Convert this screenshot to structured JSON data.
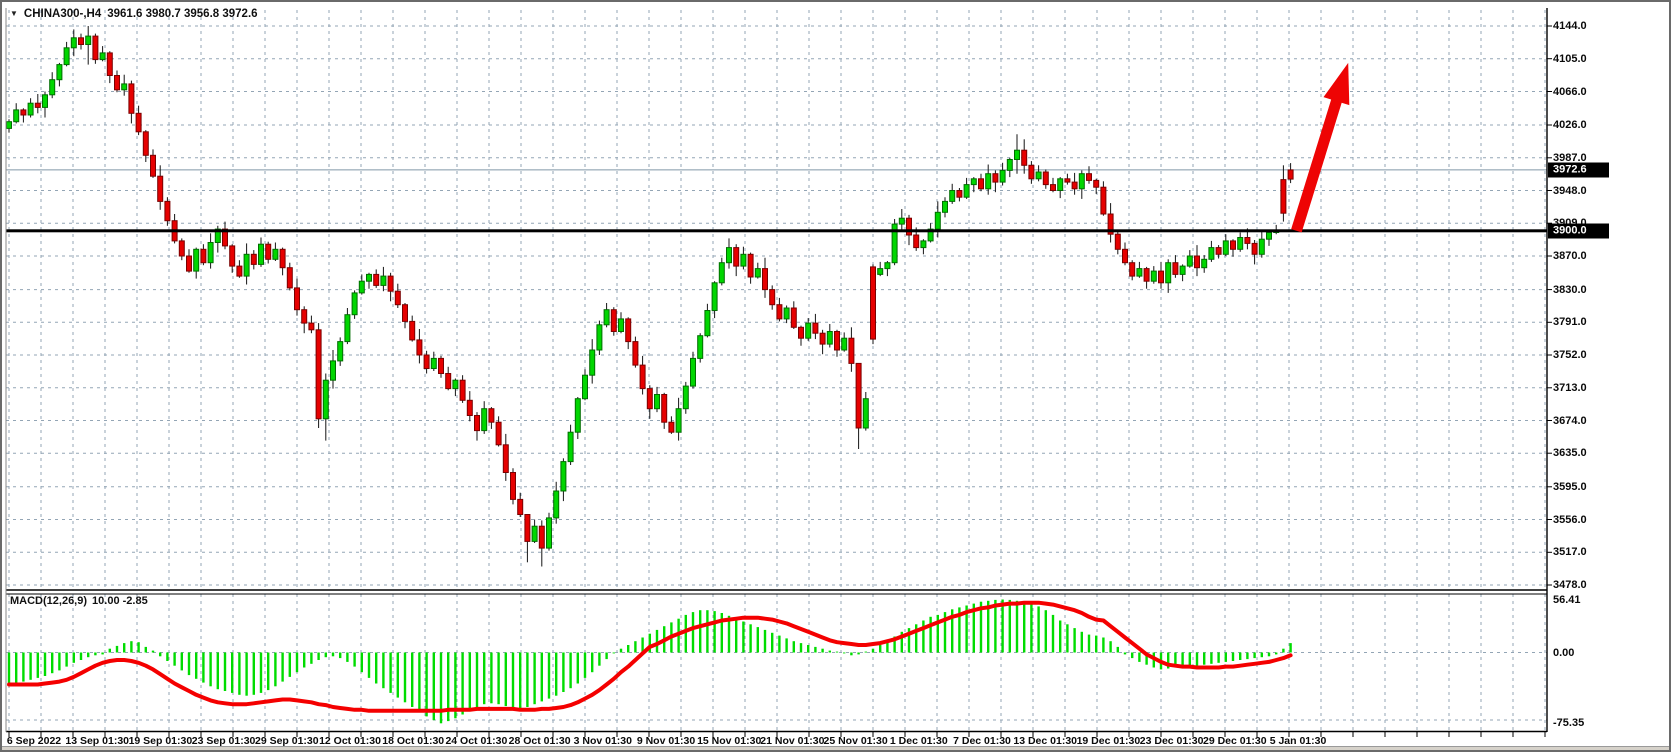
{
  "header": {
    "symbol_period": "CHINA300-,H4",
    "ohlc_text": "3961.6 3980.7 3956.8 3972.6",
    "dropdown_glyph": "▼"
  },
  "macd_header": {
    "name": "MACD(12,26,9)",
    "values": "10.00 -2.85"
  },
  "chart_data": {
    "type": "candlestick+macd",
    "symbol": "CHINA300-",
    "timeframe": "H4",
    "title": "CHINA300-,H4  3961.6 3980.7 3956.8 3972.6",
    "current_quote": {
      "open": 3961.6,
      "high": 3980.7,
      "low": 3956.8,
      "close": 3972.6
    },
    "current_price_label": "3972.6",
    "hline_label": "3900.0",
    "hline_price": 3900.0,
    "price_axis_labels": [
      "4144.0",
      "4105.0",
      "4066.0",
      "4026.0",
      "3987.0",
      "3948.0",
      "3909.0",
      "3870.0",
      "3830.0",
      "3791.0",
      "3752.0",
      "3713.0",
      "3674.0",
      "3635.0",
      "3595.0",
      "3556.0",
      "3517.0",
      "3478.0"
    ],
    "price_axis_range": [
      3478.0,
      4144.0
    ],
    "grid": "dashed",
    "time_axis_labels": [
      "6 Sep 2022",
      "13 Sep 01:30",
      "19 Sep 01:30",
      "23 Sep 01:30",
      "29 Sep 01:30",
      "12 Oct 01:30",
      "18 Oct 01:30",
      "24 Oct 01:30",
      "28 Oct 01:30",
      "3 Nov 01:30",
      "9 Nov 01:30",
      "15 Nov 01:30",
      "21 Nov 01:30",
      "25 Nov 01:30",
      "1 Dec 01:30",
      "7 Dec 01:30",
      "13 Dec 01:30",
      "19 Dec 01:30",
      "23 Dec 01:30",
      "29 Dec 01:30",
      "5 Jan 01:30"
    ],
    "candles": {
      "closes": [
        4030,
        4044,
        4038,
        4052,
        4047,
        4062,
        4080,
        4098,
        4118,
        4130,
        4122,
        4132,
        4104,
        4112,
        4085,
        4068,
        4075,
        4040,
        4018,
        3990,
        3965,
        3935,
        3912,
        3888,
        3870,
        3852,
        3878,
        3862,
        3886,
        3902,
        3882,
        3858,
        3846,
        3872,
        3860,
        3884,
        3866,
        3878,
        3856,
        3832,
        3806,
        3790,
        3782,
        3676,
        3722,
        3745,
        3768,
        3800,
        3826,
        3840,
        3848,
        3835,
        3846,
        3828,
        3812,
        3792,
        3770,
        3752,
        3736,
        3748,
        3730,
        3712,
        3722,
        3698,
        3680,
        3662,
        3688,
        3672,
        3645,
        3612,
        3580,
        3562,
        3530,
        3548,
        3522,
        3558,
        3590,
        3625,
        3660,
        3700,
        3728,
        3758,
        3788,
        3806,
        3780,
        3795,
        3768,
        3740,
        3712,
        3688,
        3705,
        3672,
        3660,
        3688,
        3715,
        3748,
        3775,
        3805,
        3838,
        3862,
        3880,
        3858,
        3872,
        3845,
        3855,
        3830,
        3812,
        3795,
        3808,
        3785,
        3772,
        3790,
        3778,
        3765,
        3780,
        3758,
        3772,
        3742,
        3665,
        3700,
        3771,
        3855,
        3862,
        3908,
        3915,
        3895,
        3880,
        3888,
        3902,
        3922,
        3935,
        3948,
        3940,
        3955,
        3962,
        3950,
        3968,
        3958,
        3972,
        3985,
        3996,
        3978,
        3962,
        3970,
        3955,
        3948,
        3962,
        3958,
        3950,
        3968,
        3960,
        3952,
        3920,
        3896,
        3878,
        3862,
        3846,
        3855,
        3840,
        3852,
        3838,
        3862,
        3848,
        3858,
        3870,
        3856,
        3866,
        3880,
        3872,
        3888,
        3878,
        3892,
        3885,
        3872,
        3890,
        3898,
        3900,
        3921,
        3972.6
      ],
      "open_overrides": {
        "0": 4022,
        "120": 3857,
        "121": 3848,
        "177": 3961,
        "178": 3961.6
      },
      "hl_overrides": {
        "9": [
          4140,
          4108
        ],
        "11": [
          4144,
          4098
        ],
        "43": [
          3790,
          3665
        ],
        "44": [
          3730,
          3650
        ],
        "72": [
          3560,
          3505
        ],
        "74": [
          3555,
          3500
        ],
        "118": [
          3700,
          3640
        ],
        "120": [
          3860,
          3765
        ],
        "140": [
          4015,
          3968
        ],
        "177": [
          3978,
          3911
        ],
        "178": [
          3980.7,
          3956.8
        ]
      },
      "color_override": {
        "178": "down"
      },
      "wick_up_pattern": [
        3,
        8,
        2,
        6,
        11,
        4,
        9,
        2,
        7,
        13,
        5,
        8
      ],
      "wick_dn_pattern": [
        5,
        2,
        9,
        3,
        7,
        12,
        4,
        8,
        2,
        10,
        6,
        3
      ]
    },
    "macd": {
      "label": "MACD(12,26,9)",
      "display_values": "10.00 -2.85",
      "axis_labels": [
        "56.41",
        "0.00",
        "-75.35"
      ],
      "axis_values": [
        56.41,
        0.0,
        -75.35
      ],
      "histogram": [
        -34,
        -33,
        -31,
        -29,
        -27,
        -25,
        -22,
        -19,
        -15,
        -11,
        -8,
        -5,
        -3,
        -2,
        4,
        7,
        10,
        12,
        11,
        6,
        2,
        -4,
        -9,
        -14,
        -19,
        -24,
        -28,
        -32,
        -36,
        -39,
        -41,
        -43,
        -45,
        -46,
        -45,
        -43,
        -40,
        -36,
        -31,
        -26,
        -21,
        -16,
        -12,
        -8,
        -5,
        -4,
        -6,
        -10,
        -15,
        -21,
        -27,
        -33,
        -38,
        -43,
        -48,
        -53,
        -58,
        -63,
        -68,
        -72,
        -75.35,
        -73,
        -70,
        -66,
        -62,
        -58,
        -55,
        -54,
        -55,
        -57,
        -59,
        -60,
        -58,
        -55,
        -52,
        -49,
        -46,
        -42,
        -38,
        -33,
        -27,
        -21,
        -14,
        -7,
        -1,
        4,
        8,
        12,
        16,
        20,
        24,
        28,
        32,
        36,
        40,
        43,
        45,
        45,
        44,
        42,
        39,
        36,
        33,
        30,
        27,
        24,
        21,
        18,
        15,
        12,
        10,
        8,
        6,
        4,
        2,
        1,
        -1,
        -3,
        -2,
        1,
        4,
        8,
        12,
        17,
        22,
        26,
        30,
        34,
        38,
        40,
        43,
        46,
        48,
        50,
        52,
        54,
        55,
        56,
        56.41,
        56,
        55,
        54,
        52,
        49,
        45,
        40,
        34,
        30,
        26,
        22,
        19,
        18,
        16,
        12,
        6,
        -2,
        -6,
        -10,
        -13,
        -16,
        -18,
        -17,
        -16,
        -15,
        -14,
        -14,
        -13,
        -12,
        -11,
        -10,
        -9,
        -8,
        -7,
        -6,
        -5,
        -4,
        -2,
        4,
        10
      ],
      "signal": [
        -34,
        -34,
        -34,
        -34,
        -34,
        -33,
        -32,
        -31,
        -29,
        -26,
        -22,
        -18,
        -14,
        -11,
        -9,
        -8,
        -8,
        -9,
        -11,
        -14,
        -18,
        -23,
        -28,
        -33,
        -37,
        -41,
        -45,
        -48,
        -51,
        -53,
        -54,
        -55,
        -55,
        -55,
        -54,
        -53,
        -52,
        -51,
        -50,
        -50,
        -51,
        -52,
        -53,
        -55,
        -56,
        -58,
        -59,
        -60,
        -61,
        -61,
        -62,
        -62,
        -62,
        -62,
        -62,
        -62,
        -62,
        -62,
        -62,
        -62,
        -62,
        -61,
        -61,
        -61,
        -61,
        -60,
        -60,
        -60,
        -60,
        -60,
        -60,
        -61,
        -61,
        -61,
        -60,
        -60,
        -59,
        -58,
        -56,
        -53,
        -49,
        -45,
        -40,
        -34,
        -28,
        -21,
        -15,
        -8,
        -1,
        6,
        9,
        13,
        17,
        20,
        23,
        26,
        28,
        30,
        32,
        34,
        35,
        36,
        37,
        37,
        37,
        36,
        35,
        33,
        31,
        28,
        25,
        22,
        19,
        16,
        13,
        11,
        10,
        9,
        8,
        8,
        9,
        10,
        12,
        14,
        17,
        20,
        23,
        26,
        29,
        32,
        35,
        38,
        40,
        43,
        45,
        47,
        48,
        50,
        51,
        52,
        52,
        53,
        53,
        53,
        52,
        51,
        49,
        47,
        45,
        42,
        38,
        35,
        34,
        28,
        22,
        16,
        10,
        4,
        -2,
        -6,
        -10,
        -13,
        -14,
        -15,
        -15,
        -16,
        -16,
        -16,
        -16,
        -15,
        -15,
        -14,
        -13,
        -12,
        -11,
        -10,
        -8,
        -6,
        -3
      ]
    },
    "trend_arrow": {
      "start_price": 3900,
      "end_price": 4100,
      "start_candle_offset": 0.8,
      "length_candles": 7.2
    },
    "colors": {
      "candle_up": "#00d600",
      "candle_up_border": "#006e00",
      "candle_down": "#e60000",
      "candle_down_border": "#7a0000",
      "wick": "#141414",
      "macd_hist": "#00dc00",
      "macd_signal": "#f40000",
      "grid": "#93a5b5",
      "hline": "#000000",
      "bid_line": "#8196a8",
      "arrow": "#ee0404",
      "tag_bg": "#000000",
      "tag_text": "#ffffff"
    }
  }
}
